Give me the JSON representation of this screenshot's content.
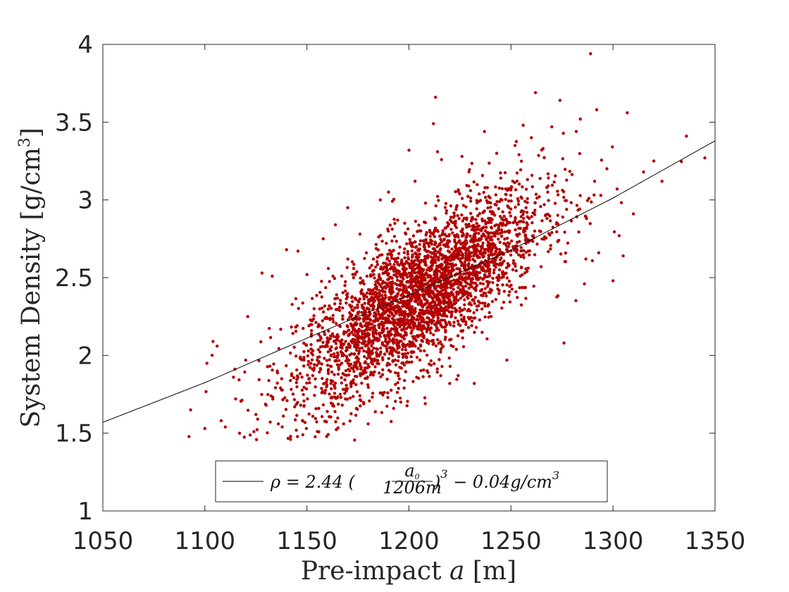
{
  "chart_data": {
    "type": "scatter",
    "title": "",
    "xlabel": "Pre-impact a [m]",
    "ylabel": "System Density [g/cm³]",
    "xlim": [
      1050,
      1350
    ],
    "ylim": [
      1,
      4
    ],
    "xticks": [
      "1050",
      "1100",
      "1150",
      "1200",
      "1250",
      "1300",
      "1350"
    ],
    "yticks": [
      "1",
      "1.5",
      "2",
      "2.5",
      "3",
      "3.5",
      "4"
    ],
    "grid": false,
    "legend_position": "bottom-center",
    "series": [
      {
        "type": "scatter",
        "color": "#b30000",
        "points": [
          [
            1093,
            1.65
          ],
          [
            1100,
            1.53
          ],
          [
            1101,
            1.95
          ],
          [
            1104,
            2.09
          ],
          [
            1106,
            2.06
          ],
          [
            1108,
            1.58
          ],
          [
            1110,
            1.54
          ],
          [
            1114,
            1.86
          ],
          [
            1117,
            1.5
          ],
          [
            1120,
            1.97
          ],
          [
            1121,
            2.25
          ],
          [
            1124,
            1.51
          ],
          [
            1125,
            1.62
          ],
          [
            1128,
            2.53
          ],
          [
            1130,
            1.68
          ],
          [
            1133,
            2.51
          ],
          [
            1136,
            1.56
          ],
          [
            1140,
            2.68
          ],
          [
            1142,
            1.46
          ],
          [
            1148,
            1.49
          ],
          [
            1150,
            2.52
          ],
          [
            1158,
            2.75
          ],
          [
            1160,
            1.64
          ],
          [
            1164,
            2.84
          ],
          [
            1168,
            1.56
          ],
          [
            1170,
            2.95
          ],
          [
            1176,
            2.78
          ],
          [
            1180,
            1.56
          ],
          [
            1186,
            3.0
          ],
          [
            1190,
            3.05
          ],
          [
            1196,
            1.7
          ],
          [
            1200,
            3.32
          ],
          [
            1203,
            3.12
          ],
          [
            1208,
            1.69
          ],
          [
            1212,
            3.49
          ],
          [
            1213,
            3.66
          ],
          [
            1214,
            3.31
          ],
          [
            1220,
            1.82
          ],
          [
            1226,
            3.28
          ],
          [
            1232,
            1.82
          ],
          [
            1237,
            3.44
          ],
          [
            1243,
            3.3
          ],
          [
            1248,
            1.97
          ],
          [
            1252,
            3.35
          ],
          [
            1256,
            3.48
          ],
          [
            1260,
            3.4
          ],
          [
            1262,
            3.69
          ],
          [
            1268,
            3.05
          ],
          [
            1270,
            3.47
          ],
          [
            1274,
            3.64
          ],
          [
            1276,
            2.08
          ],
          [
            1282,
            3.44
          ],
          [
            1284,
            3.52
          ],
          [
            1286,
            2.46
          ],
          [
            1289,
            3.94
          ],
          [
            1291,
            3.12
          ],
          [
            1292,
            3.58
          ],
          [
            1293,
            2.66
          ],
          [
            1297,
            3.2
          ],
          [
            1300,
            2.48
          ],
          [
            1302,
            3.07
          ],
          [
            1303,
            2.77
          ],
          [
            1305,
            2.64
          ],
          [
            1307,
            3.56
          ],
          [
            1310,
            2.91
          ],
          [
            1315,
            3.18
          ],
          [
            1320,
            3.25
          ],
          [
            1324,
            3.12
          ],
          [
            1336,
            3.41
          ],
          [
            1345,
            3.27
          ]
        ],
        "bulk_cloud_note": ""
      },
      {
        "type": "line",
        "name": "ρ = 2.44 (a0/1206m)^3 − 0.04g/cm^3",
        "color": "#000000",
        "x": [
          1050,
          1100,
          1150,
          1200,
          1250,
          1300,
          1350
        ],
        "values": [
          1.57,
          1.825,
          2.111,
          2.388,
          2.678,
          3.012,
          3.38
        ]
      }
    ],
    "legend": {
      "rho_prefix": "ρ = 2.44 (",
      "frac_num": "a",
      "frac_num_sub": "0",
      "frac_den": "1206m",
      "rho_suffix": ")",
      "exponent": "3",
      "tail": " − 0.04g/cm",
      "tail_exp": "3"
    },
    "y_title_main": "System Density [g/cm",
    "y_title_exp": "3",
    "y_title_end": "]"
  }
}
